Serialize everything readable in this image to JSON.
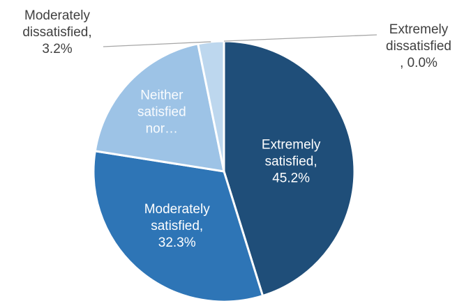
{
  "chart_data": {
    "type": "pie",
    "title": "",
    "slices": [
      {
        "name": "Extremely satisfied",
        "value": 45.2,
        "label_lines": [
          "Extremely",
          "satisfied,",
          "45.2%"
        ],
        "color": "#1f4e79",
        "label_position": "inside"
      },
      {
        "name": "Moderately satisfied",
        "value": 32.3,
        "label_lines": [
          "Moderately",
          "satisfied,",
          "32.3%"
        ],
        "color": "#2e75b6",
        "label_position": "inside"
      },
      {
        "name": "Neither satisfied nor dissatisfied",
        "value": 19.3,
        "label_lines": [
          "Neither",
          "satisfied",
          "nor…"
        ],
        "color": "#9dc3e6",
        "label_position": "inside"
      },
      {
        "name": "Moderately dissatisfied",
        "value": 3.2,
        "label_lines": [
          "Moderately",
          "dissatisfied,",
          "3.2%"
        ],
        "color": "#bdd7ee",
        "label_position": "outside-top-left"
      },
      {
        "name": "Extremely dissatisfied",
        "value": 0.0,
        "label_lines": [
          "Extremely",
          "dissatisfied",
          ", 0.0%"
        ],
        "color": "#deebf7",
        "label_position": "outside-top-right"
      }
    ],
    "start_angle_deg": 0,
    "direction": "clockwise",
    "legend": "none",
    "label_colors": {
      "inside": "#ffffff",
      "outside": "#404040"
    },
    "leader_line_color": "#a6a6a6"
  }
}
